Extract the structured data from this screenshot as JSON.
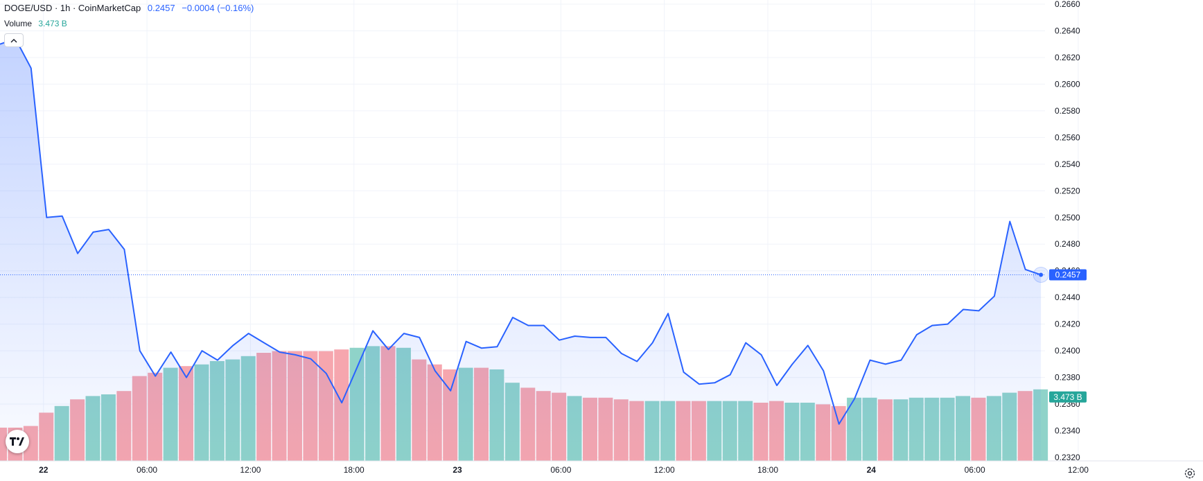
{
  "legend": {
    "symbol": "DOGE/USD · 1h · CoinMarketCap",
    "price": "0.2457",
    "change": "−0.0004 (−0.16%)",
    "volume_label": "Volume",
    "volume_value": "3.473 B"
  },
  "price_tag": "0.2457",
  "volume_tag": "3.473 B",
  "colors": {
    "line": "#2962ff",
    "up_volume": "#8fd3c9",
    "down_volume": "#f6a6ae",
    "grid": "#f0f3fa",
    "axis_text": "#131722",
    "volume_tag": "#26a69a"
  },
  "icons": [
    "collapse-chevron-up-icon",
    "tradingview-logo-icon",
    "settings-icon"
  ],
  "chart_data": {
    "type": "area",
    "title": "DOGE/USD · 1h · CoinMarketCap",
    "ylim": [
      0.232,
      0.266
    ],
    "y_ticks": [
      "0.2320",
      "0.2340",
      "0.2360",
      "0.2380",
      "0.2400",
      "0.2420",
      "0.2440",
      "0.2460",
      "0.2480",
      "0.2500",
      "0.2520",
      "0.2540",
      "0.2560",
      "0.2580",
      "0.2600",
      "0.2620",
      "0.2640",
      "0.2660"
    ],
    "x_tick_labels": [
      "22",
      "06:00",
      "12:00",
      "18:00",
      "23",
      "06:00",
      "12:00",
      "18:00",
      "24",
      "06:00",
      "12:00"
    ],
    "grid": true,
    "last_value": 0.2457,
    "series": [
      {
        "values": [
          0.263,
          0.2634,
          0.2612,
          0.25,
          0.2501,
          0.2473,
          0.2489,
          0.2491,
          0.2476,
          0.24,
          0.2381,
          0.2399,
          0.238,
          0.24,
          0.2393,
          0.2404,
          0.2413,
          0.2406,
          0.2399,
          0.2397,
          0.2394,
          0.2383,
          0.2361,
          0.2388,
          0.2415,
          0.2401,
          0.2413,
          0.241,
          0.2385,
          0.237,
          0.2407,
          0.2402,
          0.2403,
          0.2425,
          0.2419,
          0.2419,
          0.2408,
          0.2411,
          0.241,
          0.241,
          0.2398,
          0.2392,
          0.2406,
          0.2428,
          0.2384,
          0.2375,
          0.2376,
          0.2382,
          0.2406,
          0.2397,
          0.2374,
          0.239,
          0.2404,
          0.2385,
          0.2345,
          0.2364,
          0.2393,
          0.239,
          0.2393,
          0.2412,
          0.2419,
          0.242,
          0.2431,
          0.243,
          0.2441,
          0.2497,
          0.2461,
          0.2457
        ]
      },
      {
        "name": "Volume",
        "values": [
          2.0,
          2.0,
          2.1,
          2.9,
          3.3,
          3.7,
          3.9,
          4.0,
          4.2,
          5.1,
          5.3,
          5.6,
          5.7,
          5.8,
          6.0,
          6.1,
          6.3,
          6.5,
          6.6,
          6.6,
          6.6,
          6.6,
          6.7,
          6.8,
          6.9,
          6.9,
          6.8,
          6.1,
          5.8,
          5.5,
          5.6,
          5.6,
          5.5,
          4.7,
          4.4,
          4.2,
          4.1,
          3.9,
          3.8,
          3.8,
          3.7,
          3.6,
          3.6,
          3.6,
          3.6,
          3.6,
          3.6,
          3.6,
          3.6,
          3.5,
          3.6,
          3.5,
          3.5,
          3.4,
          3.3,
          3.8,
          3.8,
          3.7,
          3.7,
          3.8,
          3.8,
          3.8,
          3.9,
          3.8,
          3.9,
          4.1,
          4.2,
          4.3
        ],
        "volume_direction": [
          "d",
          "d",
          "d",
          "d",
          "u",
          "d",
          "u",
          "u",
          "d",
          "d",
          "d",
          "u",
          "d",
          "u",
          "u",
          "u",
          "u",
          "d",
          "d",
          "d",
          "d",
          "d",
          "d",
          "u",
          "u",
          "d",
          "u",
          "d",
          "d",
          "d",
          "u",
          "d",
          "u",
          "u",
          "d",
          "d",
          "d",
          "u",
          "d",
          "d",
          "d",
          "d",
          "u",
          "u",
          "d",
          "d",
          "u",
          "u",
          "u",
          "d",
          "d",
          "u",
          "u",
          "d",
          "d",
          "u",
          "u",
          "d",
          "u",
          "u",
          "u",
          "u",
          "u",
          "d",
          "u",
          "u",
          "d",
          "u"
        ]
      }
    ]
  }
}
